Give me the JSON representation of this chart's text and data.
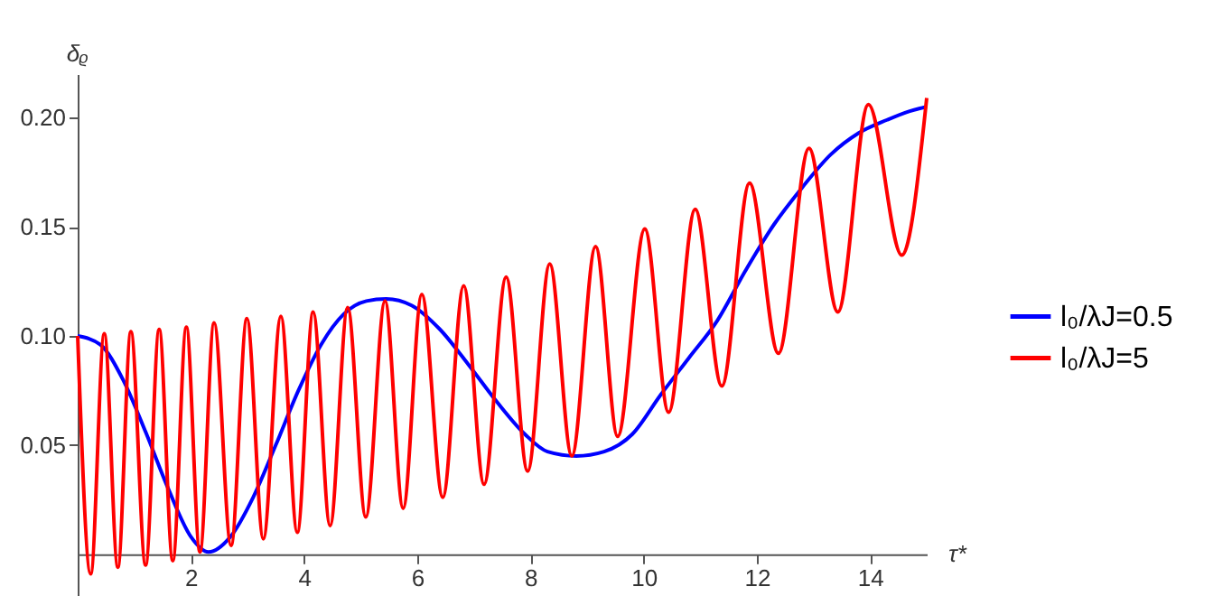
{
  "chart_data": {
    "type": "line",
    "xlabel": "τ*",
    "ylabel": "δᵨ",
    "xlim": [
      0,
      15
    ],
    "xticks": [
      2,
      4,
      6,
      8,
      10,
      12,
      14
    ],
    "ylim": [
      -0.02,
      0.22
    ],
    "yticks": [
      {
        "value": 0.05,
        "label": "0.05"
      },
      {
        "value": 0.1,
        "label": "0.10"
      },
      {
        "value": 0.15,
        "label": "0.15"
      },
      {
        "value": 0.2,
        "label": "0.20"
      }
    ],
    "grid": false,
    "legend": "right",
    "marker": "none",
    "line_style": "solid",
    "series": [
      {
        "name": "l₀/λJ=0.5",
        "color": "#0000ff",
        "x": [
          0,
          0.4,
          0.8,
          1.2,
          1.6,
          2.0,
          2.31,
          2.7,
          3.1,
          3.5,
          3.9,
          4.3,
          4.7,
          5.1,
          5.45,
          5.9,
          6.4,
          6.9,
          7.4,
          7.9,
          8.3,
          8.81,
          9.3,
          9.8,
          10.3,
          10.8,
          11.3,
          11.8,
          12.3,
          12.8,
          13.3,
          13.8,
          14.3,
          14.7,
          15
        ],
        "values": [
          0.1,
          0.096,
          0.08,
          0.056,
          0.03,
          0.008,
          0.001,
          0.008,
          0.026,
          0.05,
          0.075,
          0.096,
          0.11,
          0.116,
          0.117,
          0.114,
          0.103,
          0.087,
          0.07,
          0.055,
          0.047,
          0.045,
          0.047,
          0.055,
          0.073,
          0.09,
          0.107,
          0.13,
          0.151,
          0.168,
          0.183,
          0.193,
          0.199,
          0.203,
          0.205
        ]
      },
      {
        "name": "l₀/λJ=5",
        "color": "#ff0000",
        "x": [
          0,
          0.23,
          0.47,
          0.71,
          0.94,
          1.2,
          1.44,
          1.68,
          1.92,
          2.16,
          2.41,
          2.71,
          2.99,
          3.28,
          3.59,
          3.88,
          4.16,
          4.46,
          4.77,
          5.09,
          5.43,
          5.75,
          6.08,
          6.45,
          6.82,
          7.18,
          7.57,
          7.95,
          8.34,
          8.73,
          9.15,
          9.54,
          10.02,
          10.44,
          10.91,
          11.38,
          11.87,
          12.38,
          12.92,
          13.43,
          13.97,
          14.56,
          15
        ],
        "values": [
          0.1,
          -0.009,
          0.101,
          -0.006,
          0.102,
          -0.005,
          0.103,
          -0.003,
          0.104,
          0.001,
          0.106,
          0.004,
          0.108,
          0.007,
          0.109,
          0.01,
          0.111,
          0.013,
          0.113,
          0.017,
          0.116,
          0.021,
          0.119,
          0.026,
          0.123,
          0.032,
          0.127,
          0.038,
          0.133,
          0.045,
          0.141,
          0.054,
          0.149,
          0.065,
          0.158,
          0.077,
          0.17,
          0.092,
          0.186,
          0.111,
          0.206,
          0.137,
          0.209
        ]
      }
    ]
  }
}
